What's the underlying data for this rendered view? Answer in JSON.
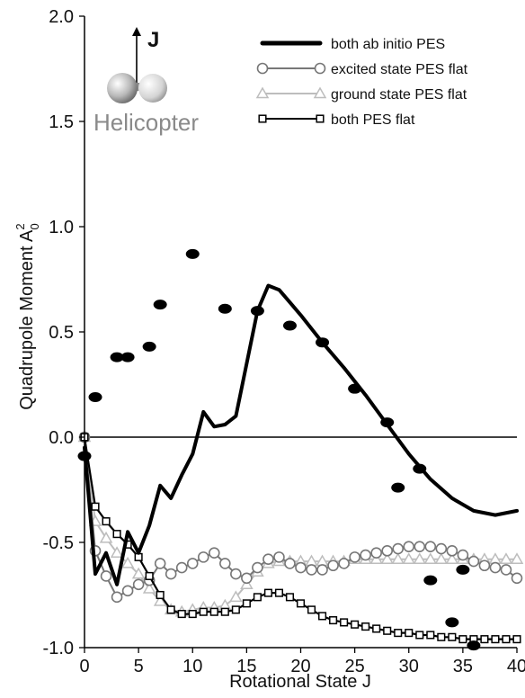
{
  "chart_data": {
    "type": "line",
    "xlabel": "Rotational State J",
    "ylabel_main": "Quadrupole Moment A",
    "ylabel_sup": "2",
    "ylabel_sub": "0",
    "xlim": [
      0,
      40
    ],
    "ylim": [
      -1.0,
      2.0
    ],
    "xticks": [
      0,
      5,
      10,
      15,
      20,
      25,
      30,
      35,
      40
    ],
    "yticks": [
      -1.0,
      -0.5,
      0.0,
      0.5,
      1.0,
      1.5,
      2.0
    ],
    "ytick_labels": [
      "-1.0",
      "-0.5",
      "0.0",
      "0.5",
      "1.0",
      "1.5",
      "2.0"
    ],
    "legend_position": "top-right",
    "inset": {
      "label": "Helicopter",
      "axis_label": "J"
    },
    "series": [
      {
        "name": "both ab initio PES",
        "style": "thick-line",
        "color": "#000000",
        "x": [
          0,
          1,
          2,
          3,
          4,
          5,
          6,
          7,
          8,
          9,
          10,
          11,
          12,
          13,
          14,
          15,
          16,
          17,
          18,
          19,
          20,
          22,
          24,
          26,
          28,
          30,
          32,
          34,
          36,
          38,
          40
        ],
        "y": [
          -0.05,
          -0.65,
          -0.55,
          -0.7,
          -0.45,
          -0.55,
          -0.42,
          -0.23,
          -0.29,
          -0.18,
          -0.08,
          0.12,
          0.05,
          0.06,
          0.1,
          0.35,
          0.6,
          0.72,
          0.7,
          0.64,
          0.58,
          0.45,
          0.33,
          0.2,
          0.06,
          -0.08,
          -0.2,
          -0.29,
          -0.35,
          -0.37,
          -0.35
        ]
      },
      {
        "name": "excited state PES flat",
        "style": "circle",
        "color": "#777777",
        "x": [
          0,
          1,
          2,
          3,
          4,
          5,
          6,
          7,
          8,
          9,
          10,
          11,
          12,
          13,
          14,
          15,
          16,
          17,
          18,
          19,
          20,
          21,
          22,
          23,
          24,
          25,
          26,
          27,
          28,
          29,
          30,
          31,
          32,
          33,
          34,
          35,
          36,
          37,
          38,
          39,
          40
        ],
        "y": [
          0.0,
          -0.54,
          -0.66,
          -0.76,
          -0.73,
          -0.7,
          -0.68,
          -0.6,
          -0.65,
          -0.62,
          -0.6,
          -0.57,
          -0.55,
          -0.6,
          -0.65,
          -0.67,
          -0.62,
          -0.58,
          -0.57,
          -0.6,
          -0.62,
          -0.63,
          -0.63,
          -0.61,
          -0.6,
          -0.57,
          -0.56,
          -0.55,
          -0.54,
          -0.53,
          -0.52,
          -0.52,
          -0.52,
          -0.53,
          -0.54,
          -0.56,
          -0.59,
          -0.61,
          -0.62,
          -0.63,
          -0.67
        ]
      },
      {
        "name": "ground state PES flat",
        "style": "triangle",
        "color": "#bdbdbd",
        "x": [
          0,
          1,
          2,
          3,
          4,
          5,
          6,
          7,
          8,
          9,
          10,
          11,
          12,
          13,
          14,
          15,
          16,
          17,
          18,
          19,
          20,
          21,
          22,
          23,
          24,
          25,
          26,
          27,
          28,
          29,
          30,
          31,
          32,
          33,
          34,
          35,
          36,
          37,
          38,
          39,
          40
        ],
        "y": [
          0.0,
          -0.4,
          -0.48,
          -0.55,
          -0.6,
          -0.65,
          -0.72,
          -0.78,
          -0.82,
          -0.83,
          -0.82,
          -0.81,
          -0.81,
          -0.8,
          -0.76,
          -0.7,
          -0.64,
          -0.6,
          -0.59,
          -0.59,
          -0.59,
          -0.59,
          -0.59,
          -0.59,
          -0.59,
          -0.58,
          -0.58,
          -0.58,
          -0.58,
          -0.58,
          -0.58,
          -0.58,
          -0.58,
          -0.58,
          -0.58,
          -0.58,
          -0.58,
          -0.58,
          -0.58,
          -0.58,
          -0.58
        ]
      },
      {
        "name": "both PES flat",
        "style": "square",
        "color": "#000000",
        "x": [
          0,
          1,
          2,
          3,
          4,
          5,
          6,
          7,
          8,
          9,
          10,
          11,
          12,
          13,
          14,
          15,
          16,
          17,
          18,
          19,
          20,
          21,
          22,
          23,
          24,
          25,
          26,
          27,
          28,
          29,
          30,
          31,
          32,
          33,
          34,
          35,
          36,
          37,
          38,
          39,
          40
        ],
        "y": [
          0.0,
          -0.33,
          -0.4,
          -0.46,
          -0.51,
          -0.57,
          -0.66,
          -0.75,
          -0.82,
          -0.84,
          -0.84,
          -0.83,
          -0.83,
          -0.83,
          -0.82,
          -0.79,
          -0.76,
          -0.74,
          -0.74,
          -0.76,
          -0.79,
          -0.82,
          -0.85,
          -0.87,
          -0.88,
          -0.89,
          -0.9,
          -0.91,
          -0.92,
          -0.93,
          -0.93,
          -0.94,
          -0.94,
          -0.95,
          -0.95,
          -0.96,
          -0.96,
          -0.96,
          -0.96,
          -0.96,
          -0.96
        ]
      },
      {
        "name": "",
        "style": "filled-dot",
        "color": "#000000",
        "x": [
          0,
          1,
          3,
          4,
          6,
          7,
          10,
          13,
          16,
          19,
          22,
          25,
          28,
          29,
          31,
          32,
          34,
          35,
          36
        ],
        "y": [
          -0.09,
          0.19,
          0.38,
          0.38,
          0.43,
          0.63,
          0.87,
          0.61,
          0.6,
          0.53,
          0.45,
          0.23,
          0.07,
          -0.24,
          -0.15,
          -0.68,
          -0.88,
          -0.63,
          -0.99
        ]
      }
    ]
  }
}
